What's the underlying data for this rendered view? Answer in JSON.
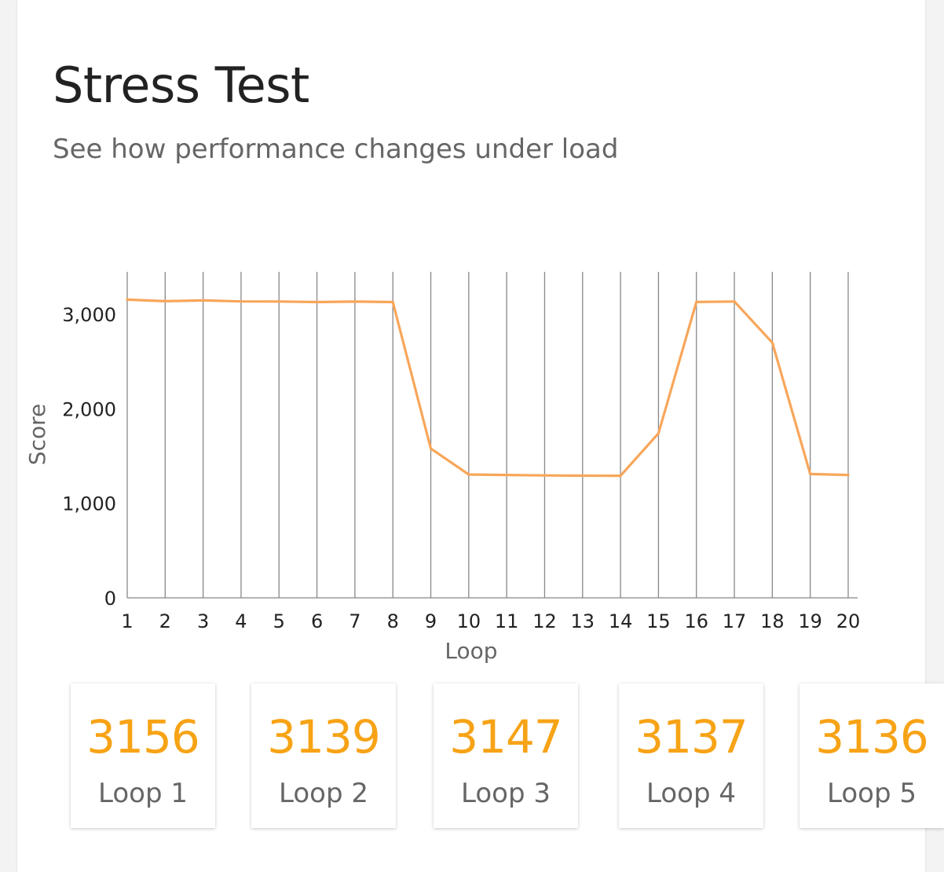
{
  "header": {
    "title": "Stress Test",
    "subtitle": "See how performance changes under load"
  },
  "colors": {
    "line": "#f8a65a",
    "accent": "#f7a316",
    "grid": "#888888"
  },
  "chart_data": {
    "type": "line",
    "xlabel": "Loop",
    "ylabel": "Score",
    "x": [
      1,
      2,
      3,
      4,
      5,
      6,
      7,
      8,
      9,
      10,
      11,
      12,
      13,
      14,
      15,
      16,
      17,
      18,
      19,
      20
    ],
    "y_ticks": [
      0,
      1000,
      2000,
      3000
    ],
    "y_tick_labels": [
      "0",
      "1,000",
      "2,000",
      "3,000"
    ],
    "ylim": [
      0,
      3450
    ],
    "grid": "vertical",
    "series": [
      {
        "values": [
          3156,
          3139,
          3147,
          3137,
          3136,
          3130,
          3135,
          3130,
          1580,
          1305,
          1300,
          1295,
          1293,
          1292,
          1740,
          3131,
          3136,
          2700,
          1310,
          1300
        ]
      }
    ]
  },
  "loops": [
    {
      "score": "3156",
      "label": "Loop 1"
    },
    {
      "score": "3139",
      "label": "Loop 2"
    },
    {
      "score": "3147",
      "label": "Loop 3"
    },
    {
      "score": "3137",
      "label": "Loop 4"
    },
    {
      "score": "3136",
      "label": "Loop 5"
    }
  ]
}
